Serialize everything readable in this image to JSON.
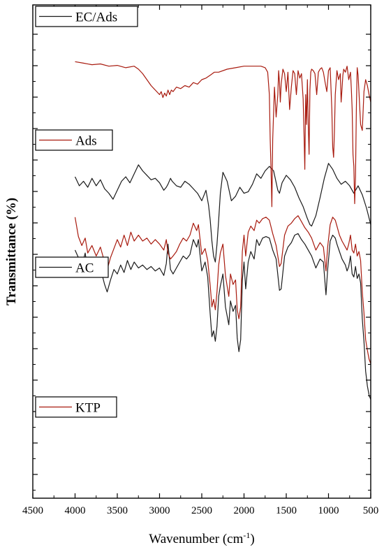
{
  "chart_data": {
    "type": "line",
    "title": "",
    "xlabel": "Wavenumber (cm-1)",
    "xlabel_parts": {
      "main": "Wavenumber (cm",
      "sup": "-1",
      "tail": ")"
    },
    "ylabel": "Transmittance (%)",
    "xlim": [
      4500,
      500
    ],
    "x_reversed": true,
    "x_ticks": [
      4500,
      4000,
      3500,
      3000,
      2500,
      2000,
      1500,
      1000,
      500
    ],
    "x_tick_labels": [
      "4500",
      "4000",
      "3500",
      "3000",
      "2500",
      "2000",
      "1500",
      "1000",
      "500"
    ],
    "y_scale": "offset-stacked (no numeric labels)",
    "grid": false,
    "legend_placement": "left, one box above each trace",
    "series": [
      {
        "name": "EC/Ads",
        "color": "#1a1a1a",
        "legend_color": "#1a1a1a",
        "x": [
          4000,
          3960,
          3920,
          3880,
          3850,
          3800,
          3750,
          3700,
          3650,
          3620,
          3580,
          3540,
          3500,
          3460,
          3420,
          3380,
          3340,
          3300,
          3250,
          3200,
          3150,
          3100,
          3050,
          3000,
          2950,
          2920,
          2900,
          2870,
          2840,
          2800,
          2760,
          2720,
          2680,
          2640,
          2600,
          2560,
          2540,
          2500,
          2460,
          2430,
          2400,
          2380,
          2360,
          2340,
          2320,
          2300,
          2280,
          2250,
          2220,
          2180,
          2160,
          2130,
          2100,
          2080,
          2060,
          2040,
          2020,
          2000,
          1980,
          1950,
          1920,
          1880,
          1850,
          1820,
          1780,
          1740,
          1700,
          1660,
          1620,
          1580,
          1560,
          1520,
          1480,
          1440,
          1400,
          1360,
          1320,
          1280,
          1240,
          1200,
          1150,
          1100,
          1060,
          1030,
          1010,
          980,
          950,
          920,
          900,
          870,
          840,
          800,
          780,
          760,
          740,
          720,
          700,
          680,
          660,
          640,
          620,
          600,
          580,
          560,
          540,
          520,
          500
        ],
        "y": [
          16.6,
          16.1,
          15.5,
          16.4,
          15.2,
          15.6,
          14.8,
          15.4,
          14.3,
          13.8,
          14.6,
          15.3,
          15.0,
          15.6,
          15.1,
          15.9,
          15.3,
          15.8,
          15.4,
          15.6,
          15.3,
          15.5,
          15.2,
          15.4,
          14.9,
          15.7,
          17.0,
          15.3,
          15.0,
          15.4,
          15.8,
          16.2,
          16.0,
          16.3,
          17.3,
          16.8,
          17.3,
          15.2,
          15.8,
          14.8,
          12.3,
          10.8,
          11.2,
          10.5,
          11.5,
          13.5,
          14.2,
          15.0,
          12.8,
          11.6,
          13.2,
          12.5,
          12.9,
          10.7,
          9.8,
          10.6,
          14.6,
          15.8,
          14.0,
          15.8,
          16.5,
          16.0,
          17.3,
          16.9,
          17.4,
          17.5,
          17.4,
          16.6,
          16.0,
          13.9,
          14.0,
          16.2,
          16.8,
          17.1,
          17.6,
          17.7,
          17.3,
          17.0,
          16.6,
          16.2,
          15.4,
          16.0,
          15.8,
          13.6,
          15.3,
          17.2,
          17.6,
          17.4,
          17.0,
          16.5,
          16.0,
          15.6,
          15.2,
          15.5,
          16.2,
          15.0,
          14.8,
          15.5,
          14.7,
          15.0,
          14.4,
          12.0,
          10.5,
          8.5,
          7.5,
          6.9,
          6.6
        ]
      },
      {
        "name": "Ads",
        "color": "#a81a0e",
        "legend_color": "#a81a0e",
        "x": [
          4000,
          3960,
          3920,
          3880,
          3850,
          3800,
          3750,
          3700,
          3650,
          3620,
          3580,
          3540,
          3500,
          3460,
          3420,
          3380,
          3340,
          3300,
          3250,
          3200,
          3150,
          3100,
          3050,
          3000,
          2950,
          2920,
          2900,
          2870,
          2840,
          2800,
          2760,
          2720,
          2680,
          2640,
          2600,
          2560,
          2540,
          2500,
          2460,
          2430,
          2400,
          2380,
          2360,
          2340,
          2320,
          2300,
          2280,
          2250,
          2220,
          2180,
          2160,
          2130,
          2100,
          2080,
          2060,
          2040,
          2020,
          2000,
          1980,
          1950,
          1920,
          1880,
          1850,
          1820,
          1780,
          1740,
          1700,
          1660,
          1620,
          1580,
          1560,
          1520,
          1480,
          1440,
          1400,
          1360,
          1320,
          1280,
          1240,
          1200,
          1150,
          1100,
          1060,
          1030,
          1010,
          980,
          950,
          920,
          900,
          870,
          840,
          800,
          780,
          760,
          740,
          720,
          700,
          680,
          660,
          640,
          620,
          600,
          580,
          560,
          540,
          520,
          500
        ],
        "y": [
          18.8,
          17.5,
          16.9,
          17.4,
          16.4,
          16.9,
          16.2,
          16.8,
          15.8,
          15.3,
          16.1,
          16.7,
          17.3,
          16.8,
          17.6,
          16.9,
          17.8,
          17.2,
          17.6,
          17.2,
          17.4,
          17.0,
          17.3,
          17.0,
          16.6,
          17.3,
          16.4,
          16.0,
          16.2,
          16.5,
          17.0,
          17.4,
          17.2,
          17.6,
          18.4,
          17.9,
          18.3,
          16.3,
          16.7,
          15.9,
          14.2,
          12.8,
          13.3,
          12.6,
          13.8,
          15.6,
          16.4,
          17.0,
          14.9,
          13.5,
          15.0,
          14.3,
          14.6,
          12.6,
          12.0,
          12.8,
          16.5,
          17.6,
          16.2,
          17.8,
          18.2,
          17.9,
          18.6,
          18.4,
          18.7,
          18.8,
          18.6,
          17.7,
          16.9,
          15.5,
          15.7,
          17.6,
          18.2,
          18.4,
          18.7,
          18.9,
          18.5,
          18.1,
          17.8,
          17.4,
          16.6,
          17.1,
          16.8,
          15.2,
          16.8,
          18.3,
          18.8,
          18.6,
          18.2,
          17.6,
          17.2,
          16.8,
          16.6,
          17.0,
          17.6,
          16.6,
          16.4,
          17.0,
          16.2,
          16.5,
          15.9,
          13.8,
          12.4,
          10.6,
          9.9,
          9.3,
          9.0
        ]
      },
      {
        "name": "AC",
        "color": "#1a1a1a",
        "legend_color": "#1a1a1a",
        "x": [
          4000,
          3950,
          3900,
          3850,
          3800,
          3750,
          3700,
          3650,
          3600,
          3550,
          3500,
          3450,
          3400,
          3350,
          3300,
          3250,
          3200,
          3150,
          3100,
          3050,
          3000,
          2950,
          2920,
          2900,
          2870,
          2850,
          2800,
          2750,
          2700,
          2650,
          2600,
          2550,
          2500,
          2450,
          2420,
          2400,
          2380,
          2360,
          2340,
          2320,
          2300,
          2280,
          2250,
          2200,
          2150,
          2100,
          2050,
          2000,
          1950,
          1900,
          1850,
          1800,
          1750,
          1700,
          1650,
          1600,
          1580,
          1550,
          1500,
          1450,
          1400,
          1350,
          1300,
          1250,
          1220,
          1200,
          1150,
          1100,
          1050,
          1000,
          950,
          900,
          850,
          800,
          750,
          700,
          650,
          600,
          550,
          500
        ],
        "y": [
          21.5,
          20.9,
          21.2,
          20.8,
          21.4,
          20.9,
          21.3,
          20.7,
          20.4,
          20.0,
          20.6,
          21.2,
          21.5,
          21.1,
          21.7,
          22.3,
          21.9,
          21.6,
          21.3,
          21.4,
          21.1,
          20.6,
          20.8,
          21.0,
          21.4,
          21.2,
          20.9,
          20.8,
          21.2,
          21.0,
          20.7,
          20.4,
          19.9,
          20.6,
          19.6,
          18.6,
          17.2,
          16.2,
          15.8,
          17.0,
          18.6,
          20.4,
          21.8,
          21.2,
          19.9,
          20.2,
          20.8,
          20.4,
          20.5,
          21.0,
          21.7,
          21.4,
          21.9,
          22.2,
          21.9,
          20.6,
          20.4,
          21.1,
          21.6,
          21.3,
          20.8,
          20.1,
          19.5,
          18.7,
          18.3,
          18.2,
          18.9,
          20.1,
          21.4,
          22.4,
          22.0,
          21.4,
          21.0,
          21.2,
          20.9,
          20.4,
          20.9,
          20.3,
          19.4,
          18.3
        ]
      },
      {
        "name": "KTP",
        "color": "#a81a0e",
        "legend_color": "#a81a0e",
        "x": [
          4000,
          3900,
          3800,
          3700,
          3600,
          3500,
          3400,
          3300,
          3250,
          3200,
          3150,
          3100,
          3050,
          3000,
          2980,
          2960,
          2940,
          2920,
          2900,
          2880,
          2860,
          2840,
          2800,
          2750,
          2700,
          2650,
          2600,
          2550,
          2500,
          2450,
          2400,
          2350,
          2300,
          2200,
          2100,
          2000,
          1900,
          1800,
          1750,
          1720,
          1700,
          1690,
          1680,
          1670,
          1660,
          1640,
          1620,
          1600,
          1590,
          1580,
          1570,
          1560,
          1540,
          1520,
          1500,
          1480,
          1460,
          1440,
          1420,
          1400,
          1380,
          1360,
          1340,
          1320,
          1300,
          1290,
          1280,
          1270,
          1260,
          1250,
          1240,
          1230,
          1220,
          1210,
          1200,
          1180,
          1160,
          1140,
          1120,
          1100,
          1080,
          1060,
          1040,
          1020,
          1000,
          980,
          960,
          950,
          940,
          930,
          920,
          900,
          880,
          860,
          850,
          840,
          830,
          820,
          800,
          780,
          760,
          740,
          730,
          720,
          710,
          700,
          690,
          680,
          670,
          660,
          650,
          640,
          620,
          600,
          580,
          560,
          540,
          520,
          500
        ],
        "y": [
          29.2,
          29.1,
          29.0,
          29.05,
          28.9,
          28.95,
          28.8,
          28.9,
          28.7,
          28.4,
          28.0,
          27.6,
          27.3,
          27.0,
          27.2,
          26.8,
          27.1,
          26.9,
          27.3,
          27.0,
          27.3,
          27.2,
          27.5,
          27.4,
          27.6,
          27.5,
          27.8,
          27.7,
          28.0,
          28.1,
          28.3,
          28.5,
          28.5,
          28.7,
          28.8,
          28.9,
          28.9,
          28.9,
          28.8,
          28.5,
          27.0,
          24.0,
          22.0,
          19.5,
          24.0,
          27.5,
          25.5,
          27.0,
          28.6,
          27.8,
          26.5,
          27.7,
          28.7,
          28.4,
          27.2,
          28.5,
          26.0,
          27.5,
          28.6,
          28.4,
          27.0,
          28.6,
          28.1,
          28.4,
          26.7,
          24.5,
          22.0,
          27.0,
          25.0,
          28.0,
          25.0,
          23.0,
          27.3,
          28.5,
          28.7,
          28.6,
          28.4,
          27.0,
          28.5,
          28.7,
          28.8,
          28.5,
          27.8,
          27.2,
          28.6,
          28.8,
          26.0,
          23.5,
          22.8,
          24.5,
          27.0,
          28.6,
          28.0,
          28.4,
          26.5,
          27.4,
          28.3,
          28.7,
          28.5,
          28.9,
          28.0,
          28.5,
          27.4,
          26.0,
          23.0,
          22.2,
          19.7,
          21.5,
          26.0,
          28.8,
          28.3,
          27.2,
          25.0,
          24.6,
          27.2,
          28.0,
          27.6,
          27.0,
          26.5
        ]
      }
    ]
  }
}
